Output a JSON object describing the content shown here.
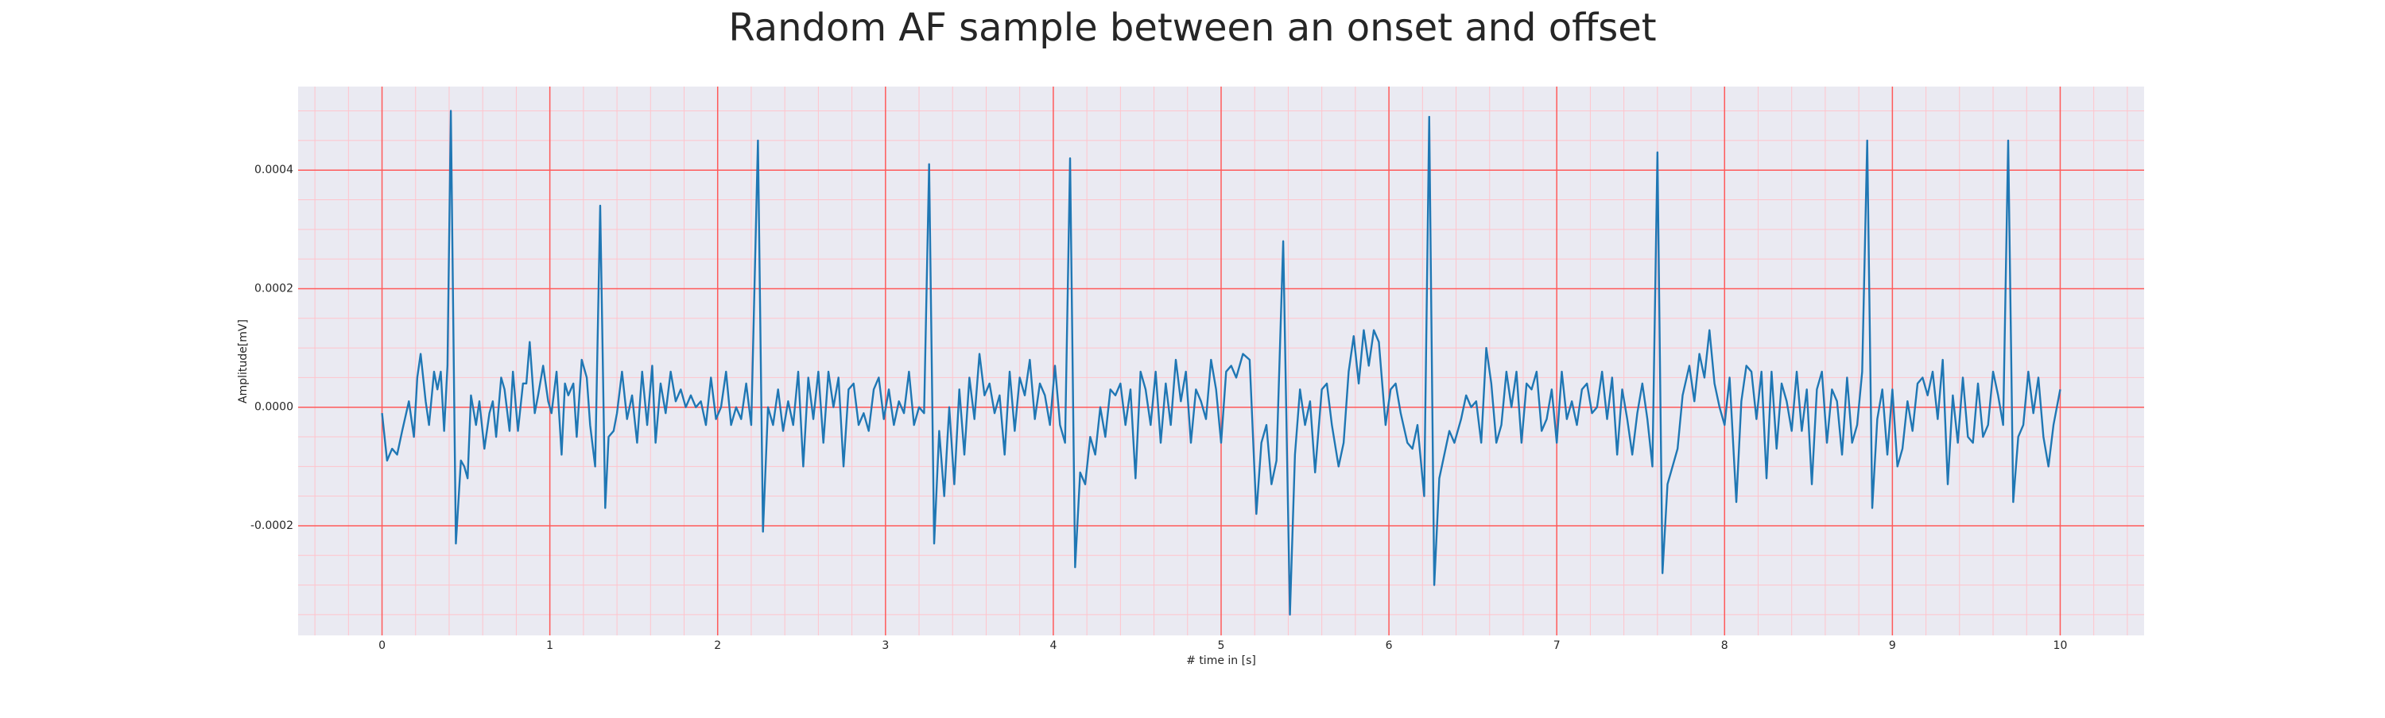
{
  "chart_data": {
    "type": "line",
    "title": "Random AF sample between an onset and offset",
    "x_label": "# time in [s]",
    "y_label": "Amplitude[mV]",
    "color": "#1f77b4",
    "grid": true,
    "xlim": [
      -0.5,
      10.5
    ],
    "ylim": [
      -0.000385,
      0.000541
    ],
    "xticks": [
      0,
      1,
      2,
      3,
      4,
      5,
      6,
      7,
      8,
      9,
      10
    ],
    "yticks": [
      -0.0002,
      {
        "value": 0,
        "label": "0.0000"
      },
      0.0002,
      0.0004
    ],
    "minor_xticks": [
      -0.4,
      -0.2,
      0.2,
      0.4,
      0.6,
      0.8,
      1.2,
      1.4,
      1.6,
      1.8,
      2.2,
      2.4,
      2.6,
      2.8,
      3.2,
      3.4,
      3.6,
      3.8,
      4.2,
      4.4,
      4.6,
      4.8,
      5.2,
      5.4,
      5.6,
      5.8,
      6.2,
      6.4,
      6.6,
      6.8,
      7.2,
      7.4,
      7.6,
      7.8,
      8.2,
      8.4,
      8.6,
      8.8,
      9.2,
      9.4,
      9.6,
      9.8,
      10.2,
      10.4
    ],
    "minor_yticks": [
      -0.00035,
      -0.0003,
      -0.00025,
      -0.00015,
      -0.0001,
      -5e-05,
      5e-05,
      0.0001,
      0.00015,
      0.00025,
      0.0003,
      0.00035,
      0.00045,
      0.0005
    ],
    "x": [
      0,
      0.03,
      0.06,
      0.09,
      0.12,
      0.16,
      0.19,
      0.21,
      0.23,
      0.26,
      0.28,
      0.31,
      0.33,
      0.35,
      0.37,
      0.39,
      0.41,
      0.44,
      0.47,
      0.49,
      0.51,
      0.53,
      0.56,
      0.58,
      0.61,
      0.64,
      0.66,
      0.68,
      0.71,
      0.73,
      0.76,
      0.78,
      0.81,
      0.84,
      0.86,
      0.88,
      0.91,
      0.93,
      0.96,
      0.99,
      1.01,
      1.04,
      1.07,
      1.09,
      1.11,
      1.14,
      1.16,
      1.19,
      1.22,
      1.24,
      1.27,
      1.3,
      1.33,
      1.35,
      1.38,
      1.4,
      1.43,
      1.46,
      1.49,
      1.52,
      1.55,
      1.58,
      1.61,
      1.63,
      1.66,
      1.69,
      1.72,
      1.75,
      1.78,
      1.81,
      1.84,
      1.87,
      1.9,
      1.93,
      1.96,
      1.99,
      2.02,
      2.05,
      2.08,
      2.11,
      2.14,
      2.17,
      2.2,
      2.24,
      2.27,
      2.3,
      2.33,
      2.36,
      2.39,
      2.42,
      2.45,
      2.48,
      2.51,
      2.54,
      2.57,
      2.6,
      2.63,
      2.66,
      2.69,
      2.72,
      2.75,
      2.78,
      2.81,
      2.84,
      2.87,
      2.9,
      2.93,
      2.96,
      2.99,
      3.02,
      3.05,
      3.08,
      3.11,
      3.14,
      3.17,
      3.2,
      3.23,
      3.26,
      3.29,
      3.32,
      3.35,
      3.38,
      3.41,
      3.44,
      3.47,
      3.5,
      3.53,
      3.56,
      3.59,
      3.62,
      3.65,
      3.68,
      3.71,
      3.74,
      3.77,
      3.8,
      3.83,
      3.86,
      3.89,
      3.92,
      3.95,
      3.98,
      4.01,
      4.04,
      4.07,
      4.1,
      4.13,
      4.16,
      4.19,
      4.22,
      4.25,
      4.28,
      4.31,
      4.34,
      4.37,
      4.4,
      4.43,
      4.46,
      4.49,
      4.52,
      4.55,
      4.58,
      4.61,
      4.64,
      4.67,
      4.7,
      4.73,
      4.76,
      4.79,
      4.82,
      4.85,
      4.88,
      4.91,
      4.94,
      4.97,
      5.0,
      5.03,
      5.06,
      5.09,
      5.13,
      5.17,
      5.21,
      5.24,
      5.27,
      5.3,
      5.33,
      5.37,
      5.41,
      5.44,
      5.47,
      5.5,
      5.53,
      5.56,
      5.6,
      5.63,
      5.66,
      5.7,
      5.73,
      5.76,
      5.79,
      5.82,
      5.85,
      5.88,
      5.91,
      5.94,
      5.98,
      6.01,
      6.04,
      6.07,
      6.11,
      6.14,
      6.17,
      6.21,
      6.24,
      6.27,
      6.3,
      6.33,
      6.36,
      6.39,
      6.43,
      6.46,
      6.49,
      6.52,
      6.55,
      6.58,
      6.61,
      6.64,
      6.67,
      6.7,
      6.73,
      6.76,
      6.79,
      6.82,
      6.85,
      6.88,
      6.91,
      6.94,
      6.97,
      7.0,
      7.03,
      7.06,
      7.09,
      7.12,
      7.15,
      7.18,
      7.21,
      7.24,
      7.27,
      7.3,
      7.33,
      7.36,
      7.39,
      7.42,
      7.45,
      7.48,
      7.51,
      7.54,
      7.57,
      7.6,
      7.63,
      7.66,
      7.69,
      7.72,
      7.75,
      7.79,
      7.82,
      7.85,
      7.88,
      7.91,
      7.94,
      7.97,
      8.0,
      8.03,
      8.07,
      8.1,
      8.13,
      8.16,
      8.19,
      8.22,
      8.25,
      8.28,
      8.31,
      8.34,
      8.37,
      8.4,
      8.43,
      8.46,
      8.49,
      8.52,
      8.55,
      8.58,
      8.61,
      8.64,
      8.67,
      8.7,
      8.73,
      8.76,
      8.79,
      8.82,
      8.85,
      8.88,
      8.91,
      8.94,
      8.97,
      9.0,
      9.03,
      9.06,
      9.09,
      9.12,
      9.15,
      9.18,
      9.21,
      9.24,
      9.27,
      9.3,
      9.33,
      9.36,
      9.39,
      9.42,
      9.45,
      9.48,
      9.51,
      9.54,
      9.57,
      9.6,
      9.63,
      9.66,
      9.69,
      9.72,
      9.75,
      9.78,
      9.81,
      9.84,
      9.87,
      9.9,
      9.93,
      9.96,
      10
    ],
    "values": [
      -1e-05,
      -9e-05,
      -7e-05,
      -8e-05,
      -4e-05,
      1e-05,
      -5e-05,
      5e-05,
      9e-05,
      1e-05,
      -3e-05,
      6e-05,
      3e-05,
      6e-05,
      -4e-05,
      7e-05,
      0.0005,
      -0.00023,
      -9e-05,
      -0.0001,
      -0.00012,
      2e-05,
      -3e-05,
      1e-05,
      -7e-05,
      -1e-05,
      1e-05,
      -5e-05,
      5e-05,
      3e-05,
      -4e-05,
      6e-05,
      -4e-05,
      4e-05,
      4e-05,
      0.00011,
      -1e-05,
      2e-05,
      7e-05,
      1e-05,
      -1e-05,
      6e-05,
      -8e-05,
      4e-05,
      2e-05,
      4e-05,
      -5e-05,
      8e-05,
      5e-05,
      -3e-05,
      -0.0001,
      0.00034,
      -0.00017,
      -5e-05,
      -4e-05,
      -1e-05,
      6e-05,
      -2e-05,
      2e-05,
      -6e-05,
      6e-05,
      -3e-05,
      7e-05,
      -6e-05,
      4e-05,
      -1e-05,
      6e-05,
      1e-05,
      3e-05,
      0,
      2e-05,
      0,
      1e-05,
      -3e-05,
      5e-05,
      -2e-05,
      0,
      6e-05,
      -3e-05,
      0,
      -2e-05,
      4e-05,
      -3e-05,
      0.00045,
      -0.00021,
      0,
      -3e-05,
      3e-05,
      -4e-05,
      1e-05,
      -3e-05,
      6e-05,
      -0.0001,
      5e-05,
      -2e-05,
      6e-05,
      -6e-05,
      6e-05,
      0,
      5e-05,
      -0.0001,
      3e-05,
      4e-05,
      -3e-05,
      -1e-05,
      -4e-05,
      3e-05,
      5e-05,
      -2e-05,
      3e-05,
      -3e-05,
      1e-05,
      -1e-05,
      6e-05,
      -3e-05,
      0,
      -1e-05,
      0.00041,
      -0.00023,
      -4e-05,
      -0.00015,
      0,
      -0.00013,
      3e-05,
      -8e-05,
      5e-05,
      -2e-05,
      9e-05,
      2e-05,
      4e-05,
      -1e-05,
      2e-05,
      -8e-05,
      6e-05,
      -4e-05,
      5e-05,
      2e-05,
      8e-05,
      -2e-05,
      4e-05,
      2e-05,
      -3e-05,
      7e-05,
      -3e-05,
      -6e-05,
      0.00042,
      -0.00027,
      -0.00011,
      -0.00013,
      -5e-05,
      -8e-05,
      0,
      -5e-05,
      3e-05,
      2e-05,
      4e-05,
      -3e-05,
      3e-05,
      -0.00012,
      6e-05,
      3e-05,
      -3e-05,
      6e-05,
      -6e-05,
      4e-05,
      -3e-05,
      8e-05,
      1e-05,
      6e-05,
      -6e-05,
      3e-05,
      1e-05,
      -2e-05,
      8e-05,
      3e-05,
      -6e-05,
      6e-05,
      7e-05,
      5e-05,
      9e-05,
      8e-05,
      -0.00018,
      -6e-05,
      -3e-05,
      -0.00013,
      -9e-05,
      0.00028,
      -0.00035,
      -8e-05,
      3e-05,
      -3e-05,
      1e-05,
      -0.00011,
      3e-05,
      4e-05,
      -3e-05,
      -0.0001,
      -6e-05,
      6e-05,
      0.00012,
      4e-05,
      0.00013,
      7e-05,
      0.00013,
      0.00011,
      -3e-05,
      3e-05,
      4e-05,
      -1e-05,
      -6e-05,
      -7e-05,
      -3e-05,
      -0.00015,
      0.00049,
      -0.0003,
      -0.00012,
      -8e-05,
      -4e-05,
      -6e-05,
      -2e-05,
      2e-05,
      0,
      1e-05,
      -6e-05,
      0.0001,
      4e-05,
      -6e-05,
      -3e-05,
      6e-05,
      0,
      6e-05,
      -6e-05,
      4e-05,
      3e-05,
      6e-05,
      -4e-05,
      -2e-05,
      3e-05,
      -6e-05,
      6e-05,
      -2e-05,
      1e-05,
      -3e-05,
      3e-05,
      4e-05,
      -1e-05,
      0,
      6e-05,
      -2e-05,
      5e-05,
      -8e-05,
      3e-05,
      -2e-05,
      -8e-05,
      -1e-05,
      4e-05,
      -2e-05,
      -0.0001,
      0.00043,
      -0.00028,
      -0.00013,
      -0.0001,
      -7e-05,
      2e-05,
      7e-05,
      1e-05,
      9e-05,
      5e-05,
      0.00013,
      4e-05,
      0,
      -3e-05,
      5e-05,
      -0.00016,
      1e-05,
      7e-05,
      6e-05,
      -2e-05,
      6e-05,
      -0.00012,
      6e-05,
      -7e-05,
      4e-05,
      1e-05,
      -4e-05,
      6e-05,
      -4e-05,
      3e-05,
      -0.00013,
      3e-05,
      6e-05,
      -6e-05,
      3e-05,
      1e-05,
      -8e-05,
      5e-05,
      -6e-05,
      -3e-05,
      6e-05,
      0.00045,
      -0.00017,
      -2e-05,
      3e-05,
      -8e-05,
      3e-05,
      -0.0001,
      -7e-05,
      1e-05,
      -4e-05,
      4e-05,
      5e-05,
      2e-05,
      6e-05,
      -2e-05,
      8e-05,
      -0.00013,
      2e-05,
      -6e-05,
      5e-05,
      -5e-05,
      -6e-05,
      4e-05,
      -5e-05,
      -3e-05,
      6e-05,
      2e-05,
      -3e-05,
      0.00045,
      -0.00016,
      -5e-05,
      -3e-05,
      6e-05,
      -1e-05,
      5e-05,
      -5e-05,
      -0.0001,
      -3e-05,
      3e-05
    ]
  }
}
